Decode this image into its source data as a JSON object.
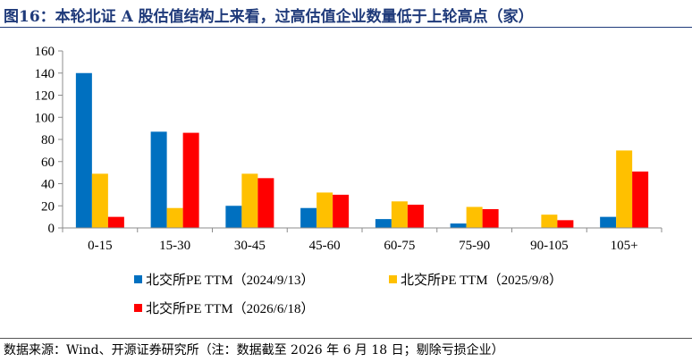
{
  "figure": {
    "title": "图16：本轮北证 A 股估值结构上来看，过高估值企业数量低于上轮高点（家）",
    "source": "数据来源：Wind、开源证券研究所（注：数据截至 2026 年 6 月 18 日；剔除亏损企业）"
  },
  "chart_data": {
    "type": "bar",
    "title": "",
    "xlabel": "",
    "ylabel": "",
    "categories": [
      "0-15",
      "15-30",
      "30-45",
      "45-60",
      "60-75",
      "75-90",
      "90-105",
      "105+"
    ],
    "ylim": [
      0,
      160
    ],
    "yticks": [
      0,
      20,
      40,
      60,
      80,
      100,
      120,
      140,
      160
    ],
    "grid": false,
    "legend_position": "bottom",
    "series": [
      {
        "name": "北交所PE TTM（2024/9/13）",
        "color": "#0070c0",
        "values": [
          140,
          87,
          20,
          18,
          8,
          4,
          0,
          10
        ]
      },
      {
        "name": "北交所PE TTM（2025/9/8）",
        "color": "#ffc000",
        "values": [
          49,
          18,
          49,
          32,
          24,
          19,
          12,
          70
        ]
      },
      {
        "name": "北交所PE TTM（2026/6/18）",
        "color": "#ff0000",
        "values": [
          10,
          86,
          45,
          30,
          21,
          17,
          7,
          51
        ]
      }
    ]
  }
}
